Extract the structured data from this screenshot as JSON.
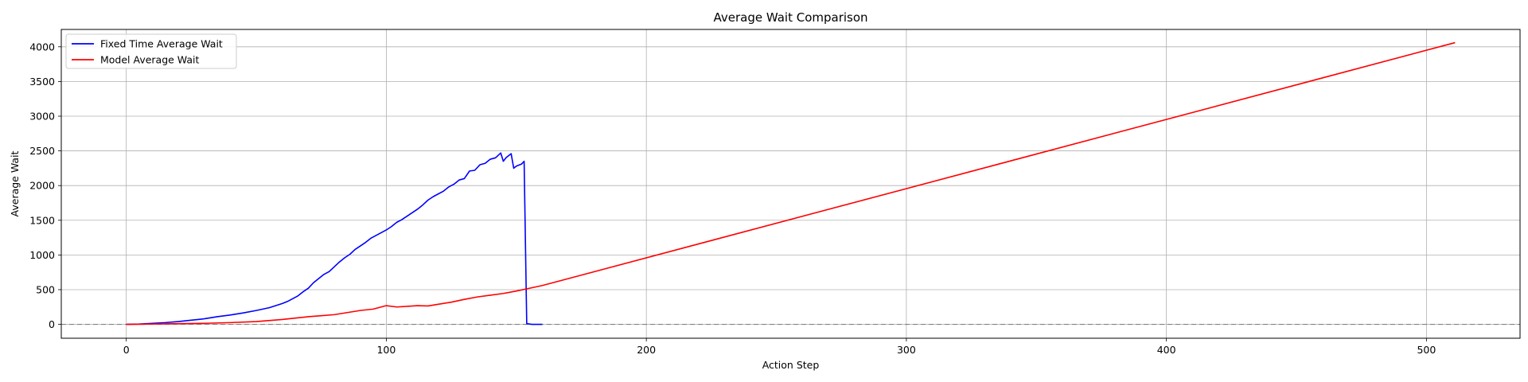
{
  "chart_data": {
    "type": "line",
    "title": "Average Wait Comparison",
    "xlabel": "Action Step",
    "ylabel": "Average Wait",
    "xlim": [
      -25,
      536
    ],
    "ylim": [
      -200,
      4250
    ],
    "xticks": [
      0,
      100,
      200,
      300,
      400,
      500
    ],
    "yticks": [
      0,
      500,
      1000,
      1500,
      2000,
      2500,
      3000,
      3500,
      4000
    ],
    "grid": true,
    "legend_position": "top-left",
    "reference_line": {
      "y": 0,
      "style": "dashed",
      "color": "#808080"
    },
    "series": [
      {
        "name": "Fixed Time Average Wait",
        "color": "#0000ff",
        "x": [
          0,
          5,
          10,
          15,
          20,
          25,
          30,
          35,
          40,
          45,
          50,
          55,
          60,
          62,
          64,
          66,
          68,
          70,
          72,
          74,
          76,
          78,
          80,
          82,
          84,
          86,
          88,
          90,
          92,
          94,
          96,
          98,
          100,
          102,
          104,
          106,
          108,
          110,
          112,
          114,
          116,
          118,
          120,
          122,
          124,
          126,
          128,
          130,
          132,
          134,
          136,
          138,
          140,
          142,
          144,
          145,
          146,
          148,
          149,
          150,
          152,
          153,
          154,
          156,
          160
        ],
        "y": [
          0,
          5,
          15,
          25,
          40,
          60,
          80,
          110,
          135,
          165,
          200,
          240,
          300,
          330,
          370,
          410,
          470,
          520,
          600,
          660,
          720,
          760,
          830,
          900,
          960,
          1010,
          1080,
          1130,
          1180,
          1240,
          1280,
          1320,
          1360,
          1410,
          1470,
          1510,
          1560,
          1610,
          1660,
          1720,
          1790,
          1840,
          1880,
          1920,
          1980,
          2020,
          2080,
          2100,
          2210,
          2220,
          2300,
          2320,
          2380,
          2400,
          2470,
          2350,
          2400,
          2460,
          2250,
          2280,
          2310,
          2350,
          10,
          0,
          0
        ]
      },
      {
        "name": "Model Average Wait",
        "color": "#ff0000",
        "x": [
          0,
          5,
          10,
          20,
          30,
          40,
          50,
          60,
          65,
          70,
          75,
          80,
          85,
          90,
          95,
          100,
          104,
          108,
          112,
          116,
          120,
          125,
          130,
          135,
          140,
          145,
          150,
          155,
          160,
          511
        ],
        "y": [
          0,
          2,
          5,
          10,
          15,
          25,
          40,
          70,
          90,
          110,
          125,
          140,
          170,
          200,
          220,
          270,
          250,
          260,
          270,
          265,
          290,
          320,
          360,
          395,
          420,
          445,
          480,
          520,
          560,
          4060
        ]
      }
    ]
  }
}
